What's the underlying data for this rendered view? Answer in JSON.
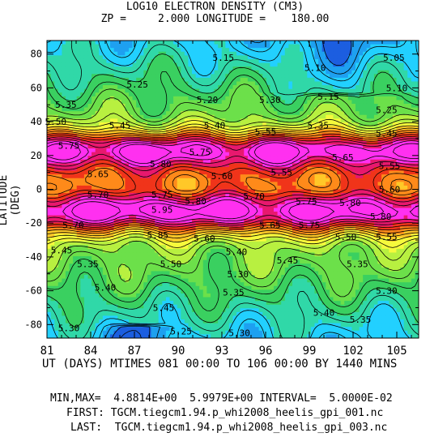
{
  "chart_data": {
    "type": "heatmap",
    "title": "LOG10 ELECTRON DENSITY (CM3)",
    "subtitle": "ZP =     2.000 LONGITUDE =    180.00",
    "xlabel": "UT (DAYS) MTIMES 081 00:00 TO 106 00:00 BY 1440 MINS",
    "ylabel": "LATITUDE (DEG)",
    "xlim": [
      81,
      106.5
    ],
    "ylim": [
      -88,
      88
    ],
    "x_ticks": [
      "81",
      "84",
      "87",
      "90",
      "93",
      "96",
      "99",
      "102",
      "105"
    ],
    "x_tick_values": [
      81,
      84,
      87,
      90,
      93,
      96,
      99,
      102,
      105
    ],
    "y_ticks": [
      "80",
      "60",
      "40",
      "20",
      "0",
      "-20",
      "-40",
      "-60",
      "-80"
    ],
    "y_tick_values": [
      80,
      60,
      40,
      20,
      0,
      -20,
      -40,
      -60,
      -80
    ],
    "min": 4.8814,
    "max": 5.9979,
    "interval": 0.05,
    "colormap": [
      "#2a1fa0",
      "#1c5ee0",
      "#1ea0f0",
      "#22d0ff",
      "#30d8a8",
      "#3ad060",
      "#6ce04a",
      "#b8f040",
      "#f6fa3c",
      "#ffc828",
      "#ff8a1a",
      "#f0341a",
      "#e8186e",
      "#ff30f0"
    ],
    "contour_labels": [
      {
        "x": 93.1,
        "y": 78,
        "text": "5.15"
      },
      {
        "x": 104.8,
        "y": 78,
        "text": "5.05"
      },
      {
        "x": 99.4,
        "y": 72,
        "text": "5.10"
      },
      {
        "x": 105.0,
        "y": 60,
        "text": "5.10"
      },
      {
        "x": 87.2,
        "y": 62,
        "text": "5.25"
      },
      {
        "x": 92.0,
        "y": 53,
        "text": "5.20"
      },
      {
        "x": 96.3,
        "y": 53,
        "text": "5.30"
      },
      {
        "x": 100.3,
        "y": 55,
        "text": "5.15"
      },
      {
        "x": 82.3,
        "y": 50,
        "text": "5.35"
      },
      {
        "x": 104.3,
        "y": 47,
        "text": "5.25"
      },
      {
        "x": 81.6,
        "y": 40,
        "text": "5.50"
      },
      {
        "x": 86.0,
        "y": 38,
        "text": "5.45"
      },
      {
        "x": 92.5,
        "y": 38,
        "text": "5.40"
      },
      {
        "x": 96.0,
        "y": 34,
        "text": "5.55"
      },
      {
        "x": 99.6,
        "y": 38,
        "text": "5.35"
      },
      {
        "x": 104.3,
        "y": 33,
        "text": "5.45"
      },
      {
        "x": 82.5,
        "y": 26,
        "text": "5.75"
      },
      {
        "x": 88.8,
        "y": 15,
        "text": "5.80"
      },
      {
        "x": 91.5,
        "y": 22,
        "text": "5.75"
      },
      {
        "x": 101.3,
        "y": 19,
        "text": "5.65"
      },
      {
        "x": 84.5,
        "y": 9,
        "text": "5.65"
      },
      {
        "x": 93.0,
        "y": 8,
        "text": "5.60"
      },
      {
        "x": 97.1,
        "y": 10,
        "text": "5.55"
      },
      {
        "x": 104.5,
        "y": 14,
        "text": "5.55"
      },
      {
        "x": 104.5,
        "y": 0,
        "text": "5.60"
      },
      {
        "x": 84.5,
        "y": -3,
        "text": "5.70"
      },
      {
        "x": 88.9,
        "y": -3,
        "text": "5.75"
      },
      {
        "x": 91.2,
        "y": -7,
        "text": "5.80"
      },
      {
        "x": 95.2,
        "y": -4,
        "text": "5.70"
      },
      {
        "x": 98.8,
        "y": -7,
        "text": "5.75"
      },
      {
        "x": 101.8,
        "y": -8,
        "text": "5.80"
      },
      {
        "x": 88.9,
        "y": -12,
        "text": "5.95"
      },
      {
        "x": 103.9,
        "y": -16,
        "text": "5.80"
      },
      {
        "x": 82.8,
        "y": -21,
        "text": "5.70"
      },
      {
        "x": 96.3,
        "y": -21,
        "text": "5.65"
      },
      {
        "x": 99.0,
        "y": -21,
        "text": "5.75"
      },
      {
        "x": 88.6,
        "y": -27,
        "text": "5.85"
      },
      {
        "x": 91.8,
        "y": -29,
        "text": "5.60"
      },
      {
        "x": 101.5,
        "y": -28,
        "text": "5.50"
      },
      {
        "x": 104.3,
        "y": -28,
        "text": "5.55"
      },
      {
        "x": 82.0,
        "y": -36,
        "text": "5.45"
      },
      {
        "x": 94.0,
        "y": -37,
        "text": "5.40"
      },
      {
        "x": 97.5,
        "y": -42,
        "text": "5.45"
      },
      {
        "x": 83.8,
        "y": -44,
        "text": "5.35"
      },
      {
        "x": 89.5,
        "y": -44,
        "text": "5.50"
      },
      {
        "x": 102.3,
        "y": -44,
        "text": "5.35"
      },
      {
        "x": 94.1,
        "y": -50,
        "text": "5.30"
      },
      {
        "x": 85.0,
        "y": -58,
        "text": "5.40"
      },
      {
        "x": 93.8,
        "y": -61,
        "text": "5.35"
      },
      {
        "x": 104.3,
        "y": -60,
        "text": "5.30"
      },
      {
        "x": 89.0,
        "y": -70,
        "text": "5.45"
      },
      {
        "x": 100.0,
        "y": -73,
        "text": "5.40"
      },
      {
        "x": 102.5,
        "y": -77,
        "text": "5.35"
      },
      {
        "x": 82.5,
        "y": -82,
        "text": "5.30"
      },
      {
        "x": 90.2,
        "y": -84,
        "text": "5.25"
      },
      {
        "x": 94.2,
        "y": -85,
        "text": "5.30"
      }
    ]
  },
  "footer": {
    "minmax_line": "MIN,MAX=  4.8814E+00  5.9979E+00 INTERVAL=  5.0000E-02",
    "first_line": "FIRST: TGCM.tiegcm1.94.p_whi2008_heelis_gpi_001.nc",
    "last_line": "LAST:  TGCM.tiegcm1.94.p_whi2008_heelis_gpi_003.nc"
  }
}
